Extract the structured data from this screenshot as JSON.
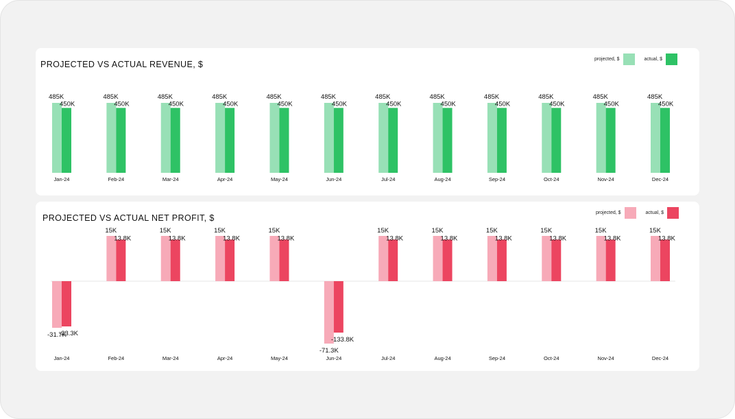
{
  "chart_data": [
    {
      "type": "bar",
      "title": "PROJECTED VS ACTUAL REVENUE, $",
      "categories": [
        "Jan-24",
        "Feb-24",
        "Mar-24",
        "Apr-24",
        "May-24",
        "Jun-24",
        "Jul-24",
        "Aug-24",
        "Sep-24",
        "Oct-24",
        "Nov-24",
        "Dec-24"
      ],
      "series": [
        {
          "name": "projected, $",
          "color": "#98e0b6",
          "values": [
            485,
            485,
            485,
            485,
            485,
            485,
            485,
            485,
            485,
            485,
            485,
            485
          ],
          "labels": [
            "485K",
            "485K",
            "485K",
            "485K",
            "485K",
            "485K",
            "485K",
            "485K",
            "485K",
            "485K",
            "485K",
            "485K"
          ]
        },
        {
          "name": "actual, $",
          "color": "#2ec265",
          "values": [
            450,
            450,
            450,
            450,
            450,
            450,
            450,
            450,
            450,
            450,
            450,
            450
          ],
          "labels": [
            "450K",
            "450K",
            "450K",
            "450K",
            "450K",
            "450K",
            "450K",
            "450K",
            "450K",
            "450K",
            "450K",
            "450K"
          ]
        }
      ],
      "legend": "top-right",
      "grid": false
    },
    {
      "type": "bar",
      "title": "PROJECTED VS ACTUAL NET PROFIT, $",
      "categories": [
        "Jan-24",
        "Feb-24",
        "Mar-24",
        "Apr-24",
        "May-24",
        "Jun-24",
        "Jul-24",
        "Aug-24",
        "Sep-24",
        "Oct-24",
        "Nov-24",
        "Dec-24"
      ],
      "series": [
        {
          "name": "projected, $",
          "color": "#f7aab8",
          "values": [
            -31.7,
            15,
            15,
            15,
            15,
            -71.3,
            15,
            15,
            15,
            15,
            15,
            15
          ],
          "labels": [
            "-31.7K",
            "15K",
            "15K",
            "15K",
            "15K",
            "-71.3K",
            "15K",
            "15K",
            "15K",
            "15K",
            "15K",
            "15K"
          ]
        },
        {
          "name": "actual, $",
          "color": "#ec4560",
          "values": [
            -23.3,
            13.8,
            13.8,
            13.8,
            13.8,
            -133.8,
            13.8,
            13.8,
            13.8,
            13.8,
            13.8,
            13.8
          ],
          "labels": [
            "-23.3K",
            "13.8K",
            "13.8K",
            "13.8K",
            "13.8K",
            "-133.8K",
            "13.8K",
            "13.8K",
            "13.8K",
            "13.8K",
            "13.8K",
            "13.8K"
          ]
        }
      ],
      "legend": "top-right",
      "grid": false
    }
  ]
}
